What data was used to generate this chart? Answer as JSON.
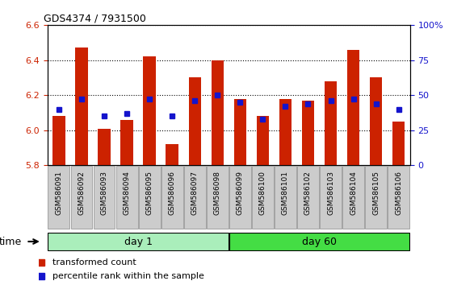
{
  "title": "GDS4374 / 7931500",
  "samples": [
    "GSM586091",
    "GSM586092",
    "GSM586093",
    "GSM586094",
    "GSM586095",
    "GSM586096",
    "GSM586097",
    "GSM586098",
    "GSM586099",
    "GSM586100",
    "GSM586101",
    "GSM586102",
    "GSM586103",
    "GSM586104",
    "GSM586105",
    "GSM586106"
  ],
  "red_values": [
    6.08,
    6.47,
    6.01,
    6.06,
    6.42,
    5.92,
    6.3,
    6.4,
    6.18,
    6.08,
    6.18,
    6.17,
    6.28,
    6.46,
    6.3,
    6.05
  ],
  "blue_values": [
    40,
    47,
    35,
    37,
    47,
    35,
    46,
    50,
    45,
    33,
    42,
    44,
    46,
    47,
    44,
    40
  ],
  "ylim_left": [
    5.8,
    6.6
  ],
  "ylim_right": [
    0,
    100
  ],
  "yticks_left": [
    5.8,
    6.0,
    6.2,
    6.4,
    6.6
  ],
  "yticks_right": [
    0,
    25,
    50,
    75,
    100
  ],
  "bar_color": "#CC2200",
  "marker_color": "#1414CC",
  "bar_width": 0.55,
  "bar_base": 5.8,
  "day1_label": "day 1",
  "day60_label": "day 60",
  "day1_count": 8,
  "day60_count": 8,
  "day1_color": "#AAEEBB",
  "day60_color": "#44DD44",
  "legend_red": "transformed count",
  "legend_blue": "percentile rank within the sample",
  "bg_color": "#FFFFFF",
  "left_tick_color": "#CC2200",
  "right_tick_color": "#1414CC",
  "xtick_bg_color": "#CCCCCC",
  "xlabel": "time"
}
